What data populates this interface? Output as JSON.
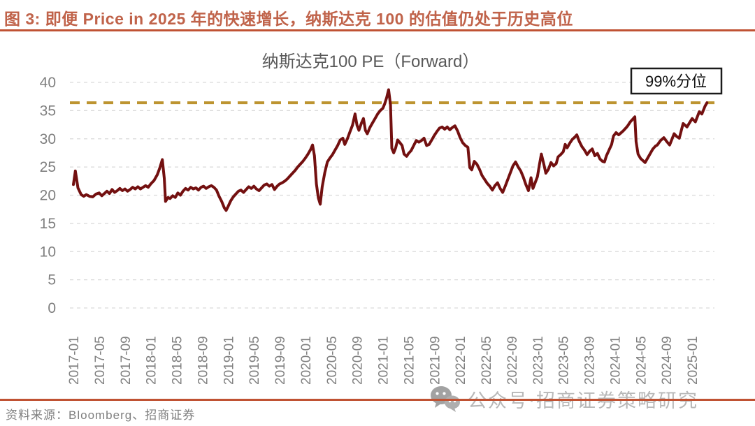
{
  "header": {
    "title": "图 3: 即便 Price in 2025 年的快速增长，纳斯达克 100 的估值仍处于历史高位",
    "title_color": "#c0634a",
    "rule_color": "#c05233"
  },
  "chart_data": {
    "type": "line",
    "title": "纳斯达克100 PE（Forward）",
    "title_color": "#595959",
    "xlabel": "",
    "ylabel": "",
    "ylim": [
      0,
      40
    ],
    "y_ticks": [
      0,
      5,
      10,
      15,
      20,
      25,
      30,
      35,
      40
    ],
    "grid": "horizontal-dashed",
    "grid_color": "#d9d9d9",
    "axis_label_color": "#7f7f7f",
    "legend_position": "none",
    "x_unit": "months-since-2017-01",
    "x_domain_months": [
      0,
      99
    ],
    "x_tick_interval_months": 4,
    "x_tick_labels": [
      "2017-01",
      "2017-05",
      "2017-09",
      "2018-01",
      "2018-05",
      "2018-09",
      "2019-01",
      "2019-05",
      "2019-09",
      "2020-01",
      "2020-05",
      "2020-09",
      "2021-01",
      "2021-05",
      "2021-09",
      "2022-01",
      "2022-05",
      "2022-09",
      "2023-01",
      "2023-05",
      "2023-09",
      "2024-01",
      "2024-05",
      "2024-09",
      "2025-01"
    ],
    "threshold": {
      "label": "99%分位",
      "value": 36.4,
      "color": "#bd9430",
      "style": "dashed",
      "label_box_color": "#1a1a1a"
    },
    "series": [
      {
        "name": "纳斯达克100 PE (Forward)",
        "color": "#731010",
        "points_month_value": [
          [
            0,
            21.9
          ],
          [
            0.3,
            24.3
          ],
          [
            0.7,
            21.3
          ],
          [
            1.2,
            20.1
          ],
          [
            1.6,
            19.8
          ],
          [
            2,
            20.1
          ],
          [
            2.5,
            19.8
          ],
          [
            3,
            19.7
          ],
          [
            3.5,
            20.2
          ],
          [
            4,
            20.4
          ],
          [
            4.4,
            19.9
          ],
          [
            4.8,
            20.3
          ],
          [
            5.2,
            20.7
          ],
          [
            5.6,
            20.3
          ],
          [
            6,
            21.0
          ],
          [
            6.4,
            20.5
          ],
          [
            6.8,
            20.8
          ],
          [
            7.2,
            21.2
          ],
          [
            7.6,
            20.8
          ],
          [
            8,
            21.1
          ],
          [
            8.4,
            20.7
          ],
          [
            8.8,
            21.0
          ],
          [
            9.2,
            21.4
          ],
          [
            9.6,
            21.1
          ],
          [
            10,
            21.5
          ],
          [
            10.4,
            21.1
          ],
          [
            10.8,
            21.4
          ],
          [
            11.2,
            21.7
          ],
          [
            11.6,
            21.4
          ],
          [
            12,
            22.0
          ],
          [
            12.5,
            22.6
          ],
          [
            13,
            23.6
          ],
          [
            13.4,
            24.8
          ],
          [
            13.8,
            26.3
          ],
          [
            14.1,
            23.0
          ],
          [
            14.3,
            18.9
          ],
          [
            14.7,
            19.6
          ],
          [
            15,
            19.4
          ],
          [
            15.4,
            19.9
          ],
          [
            15.8,
            19.6
          ],
          [
            16.2,
            20.4
          ],
          [
            16.6,
            20.0
          ],
          [
            17,
            20.7
          ],
          [
            17.4,
            21.2
          ],
          [
            17.8,
            20.9
          ],
          [
            18.2,
            21.4
          ],
          [
            18.6,
            21.1
          ],
          [
            19,
            21.3
          ],
          [
            19.4,
            20.9
          ],
          [
            19.8,
            21.4
          ],
          [
            20.2,
            21.6
          ],
          [
            20.6,
            21.2
          ],
          [
            21,
            21.5
          ],
          [
            21.4,
            21.7
          ],
          [
            21.8,
            21.4
          ],
          [
            22.2,
            20.9
          ],
          [
            22.6,
            19.8
          ],
          [
            23,
            18.9
          ],
          [
            23.4,
            17.8
          ],
          [
            23.7,
            17.3
          ],
          [
            24,
            18.0
          ],
          [
            24.4,
            19.0
          ],
          [
            24.8,
            19.7
          ],
          [
            25.2,
            20.2
          ],
          [
            25.6,
            20.7
          ],
          [
            26,
            20.9
          ],
          [
            26.4,
            20.5
          ],
          [
            26.8,
            21.0
          ],
          [
            27.2,
            21.5
          ],
          [
            27.6,
            21.2
          ],
          [
            28,
            21.6
          ],
          [
            28.4,
            21.1
          ],
          [
            28.8,
            20.8
          ],
          [
            29.2,
            21.3
          ],
          [
            29.6,
            21.8
          ],
          [
            30,
            22.0
          ],
          [
            30.4,
            21.6
          ],
          [
            30.8,
            21.9
          ],
          [
            31.2,
            21.0
          ],
          [
            31.6,
            21.6
          ],
          [
            32,
            22.0
          ],
          [
            32.4,
            22.2
          ],
          [
            32.8,
            22.5
          ],
          [
            33.2,
            22.9
          ],
          [
            33.6,
            23.4
          ],
          [
            34,
            23.9
          ],
          [
            34.4,
            24.4
          ],
          [
            34.8,
            25.0
          ],
          [
            35.2,
            25.5
          ],
          [
            35.6,
            26.0
          ],
          [
            36,
            26.6
          ],
          [
            36.4,
            27.3
          ],
          [
            36.8,
            28.1
          ],
          [
            37.1,
            28.9
          ],
          [
            37.4,
            27.0
          ],
          [
            37.7,
            22.0
          ],
          [
            38,
            19.5
          ],
          [
            38.3,
            18.4
          ],
          [
            38.6,
            21.5
          ],
          [
            39,
            24.0
          ],
          [
            39.4,
            25.9
          ],
          [
            39.8,
            26.6
          ],
          [
            40.2,
            27.2
          ],
          [
            40.6,
            28.0
          ],
          [
            41,
            28.8
          ],
          [
            41.4,
            29.8
          ],
          [
            41.8,
            30.1
          ],
          [
            42.1,
            29.0
          ],
          [
            42.5,
            30.0
          ],
          [
            42.9,
            31.2
          ],
          [
            43.3,
            32.4
          ],
          [
            43.7,
            34.4
          ],
          [
            44,
            32.4
          ],
          [
            44.3,
            31.5
          ],
          [
            44.7,
            32.8
          ],
          [
            45,
            33.6
          ],
          [
            45.3,
            31.5
          ],
          [
            45.6,
            30.9
          ],
          [
            46,
            32.0
          ],
          [
            46.4,
            32.8
          ],
          [
            46.8,
            33.6
          ],
          [
            47.2,
            34.4
          ],
          [
            47.6,
            35.0
          ],
          [
            48,
            35.4
          ],
          [
            48.3,
            36.2
          ],
          [
            48.6,
            37.3
          ],
          [
            48.9,
            38.7
          ],
          [
            49.2,
            36.0
          ],
          [
            49.4,
            28.3
          ],
          [
            49.7,
            27.5
          ],
          [
            50,
            28.4
          ],
          [
            50.3,
            29.8
          ],
          [
            50.6,
            29.4
          ],
          [
            51,
            28.8
          ],
          [
            51.3,
            27.3
          ],
          [
            51.7,
            26.9
          ],
          [
            52,
            27.4
          ],
          [
            52.4,
            27.9
          ],
          [
            52.8,
            28.8
          ],
          [
            53.2,
            29.7
          ],
          [
            53.6,
            29.4
          ],
          [
            54,
            29.7
          ],
          [
            54.4,
            30.1
          ],
          [
            54.8,
            28.8
          ],
          [
            55.2,
            29.0
          ],
          [
            55.6,
            29.8
          ],
          [
            56,
            30.6
          ],
          [
            56.4,
            31.3
          ],
          [
            56.8,
            31.9
          ],
          [
            57.2,
            32.1
          ],
          [
            57.6,
            31.7
          ],
          [
            58,
            32.1
          ],
          [
            58.4,
            31.6
          ],
          [
            58.8,
            32.0
          ],
          [
            59.2,
            32.3
          ],
          [
            59.6,
            31.4
          ],
          [
            60,
            30.2
          ],
          [
            60.4,
            29.3
          ],
          [
            60.8,
            28.8
          ],
          [
            61.2,
            28.5
          ],
          [
            61.5,
            24.9
          ],
          [
            61.8,
            24.5
          ],
          [
            62.2,
            26.0
          ],
          [
            62.6,
            25.5
          ],
          [
            63,
            24.6
          ],
          [
            63.4,
            23.5
          ],
          [
            63.8,
            22.8
          ],
          [
            64.2,
            22.1
          ],
          [
            64.6,
            21.6
          ],
          [
            65,
            20.9
          ],
          [
            65.4,
            21.7
          ],
          [
            65.8,
            22.2
          ],
          [
            66.2,
            21.2
          ],
          [
            66.6,
            20.5
          ],
          [
            67,
            21.6
          ],
          [
            67.4,
            22.8
          ],
          [
            67.8,
            24.0
          ],
          [
            68.2,
            25.2
          ],
          [
            68.6,
            25.9
          ],
          [
            69,
            25.0
          ],
          [
            69.4,
            24.3
          ],
          [
            69.8,
            23.2
          ],
          [
            70.2,
            21.9
          ],
          [
            70.6,
            20.8
          ],
          [
            71,
            23.1
          ],
          [
            71.3,
            21.2
          ],
          [
            71.7,
            22.4
          ],
          [
            72,
            23.3
          ],
          [
            72.3,
            25.4
          ],
          [
            72.6,
            27.3
          ],
          [
            73,
            25.4
          ],
          [
            73.3,
            23.9
          ],
          [
            73.7,
            24.6
          ],
          [
            74.1,
            25.8
          ],
          [
            74.5,
            25.2
          ],
          [
            74.9,
            25.6
          ],
          [
            75.2,
            26.8
          ],
          [
            75.6,
            27.2
          ],
          [
            76,
            27.7
          ],
          [
            76.3,
            29.0
          ],
          [
            76.6,
            28.4
          ],
          [
            77,
            29.2
          ],
          [
            77.4,
            29.9
          ],
          [
            77.8,
            30.3
          ],
          [
            78.1,
            30.7
          ],
          [
            78.5,
            29.5
          ],
          [
            78.9,
            28.6
          ],
          [
            79.3,
            28.0
          ],
          [
            79.7,
            27.2
          ],
          [
            80.1,
            27.8
          ],
          [
            80.5,
            28.2
          ],
          [
            80.9,
            27.0
          ],
          [
            81.3,
            27.4
          ],
          [
            81.7,
            26.4
          ],
          [
            82.1,
            26.0
          ],
          [
            82.4,
            25.9
          ],
          [
            82.7,
            27.0
          ],
          [
            83.1,
            28.0
          ],
          [
            83.5,
            29.0
          ],
          [
            83.8,
            30.5
          ],
          [
            84.2,
            31.1
          ],
          [
            84.6,
            30.7
          ],
          [
            84.9,
            31.0
          ],
          [
            85.3,
            31.4
          ],
          [
            85.7,
            31.9
          ],
          [
            86,
            32.3
          ],
          [
            86.4,
            33.0
          ],
          [
            86.8,
            33.5
          ],
          [
            87.1,
            33.9
          ],
          [
            87.3,
            29.5
          ],
          [
            87.6,
            27.3
          ],
          [
            88,
            26.5
          ],
          [
            88.4,
            26.1
          ],
          [
            88.7,
            25.8
          ],
          [
            89.1,
            26.6
          ],
          [
            89.5,
            27.4
          ],
          [
            89.9,
            28.2
          ],
          [
            90.3,
            28.7
          ],
          [
            90.6,
            28.9
          ],
          [
            91.1,
            29.7
          ],
          [
            91.6,
            30.2
          ],
          [
            92,
            29.6
          ],
          [
            92.5,
            28.9
          ],
          [
            93.2,
            30.9
          ],
          [
            93.6,
            30.4
          ],
          [
            94,
            30.1
          ],
          [
            94.6,
            32.7
          ],
          [
            95.2,
            32.1
          ],
          [
            96,
            33.6
          ],
          [
            96.5,
            33.0
          ],
          [
            97.1,
            34.8
          ],
          [
            97.5,
            34.4
          ],
          [
            98,
            35.8
          ],
          [
            98.3,
            36.4
          ]
        ]
      }
    ]
  },
  "footer": {
    "source": "资料来源：Bloomberg、招商证券",
    "rule_color": "#c05233"
  },
  "watermark": {
    "icon": "wechat-icon",
    "icon_color": "#9b9b9b",
    "text": "公众号·招商证券策略研究",
    "text_color": "#b2b2b2"
  }
}
